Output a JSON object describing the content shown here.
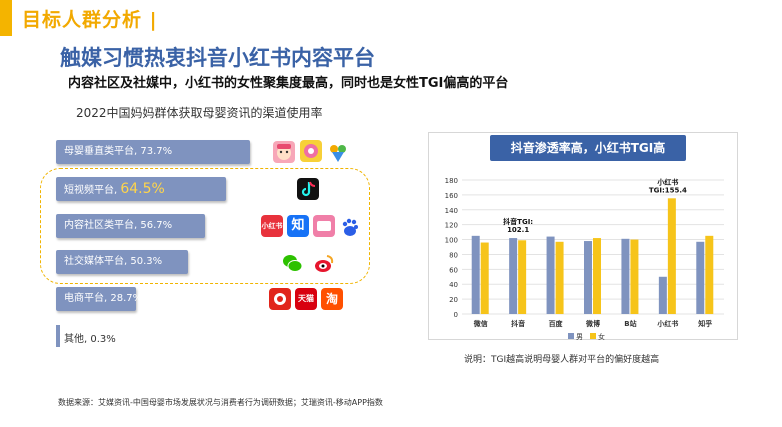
{
  "header": {
    "title": "目标人群分析 |"
  },
  "headline": "触媒习惯热衷抖音小红书内容平台",
  "subheadline": "内容社区及社媒中，小红书的女性聚集度最高，同时也是女性TGI偏高的平台",
  "left_panel": {
    "title": "2022中国妈妈群体获取母婴资讯的渠道使用率",
    "bars": [
      {
        "label": "母婴垂直类平台, 73.7%",
        "value": 73.7
      },
      {
        "label": "短视频平台, ",
        "pct": "64.5%",
        "value": 64.5
      },
      {
        "label": "内容社区类平台, 56.7%",
        "value": 56.7
      },
      {
        "label": "社交媒体平台, 50.3%",
        "value": 50.3
      },
      {
        "label": "电商平台, 28.7%",
        "value": 28.7
      },
      {
        "label": "其他, 0.3%",
        "value": 0.3
      }
    ],
    "icons": {
      "xiaohongshu": "小红书",
      "zhihu": "知",
      "tmall": "天猫",
      "taobao": "淘"
    },
    "colors": {
      "bar": "#7f93bf",
      "highlight_border": "#f0b400"
    }
  },
  "source": "数据来源：艾媒资讯-中国母婴市场发展状况与消费者行为调研数据；艾瑞资讯-移动APP指数",
  "chart_button": "抖音渗透率高，小红书TGI高",
  "chart_data": {
    "type": "bar",
    "categories": [
      "微信",
      "抖音",
      "百度",
      "微博",
      "B站",
      "小红书",
      "知乎"
    ],
    "series": [
      {
        "name": "男",
        "values": [
          105,
          102,
          104,
          98,
          101,
          50,
          97
        ],
        "color": "#7f93bf"
      },
      {
        "name": "女",
        "values": [
          96,
          99,
          97,
          102,
          100,
          155.4,
          105
        ],
        "color": "#f6c41a"
      }
    ],
    "ylim": [
      0,
      180
    ],
    "yticks": [
      0,
      20,
      40,
      60,
      80,
      100,
      120,
      140,
      160,
      180
    ],
    "annotations": [
      {
        "category": "抖音",
        "line1": "抖音TGI:",
        "line2": "102.1"
      },
      {
        "category": "小红书",
        "line1": "小红书",
        "line2": "TGI:155.4"
      }
    ],
    "legend_position": "bottom",
    "grid": true
  },
  "note": "说明：TGI越高说明母婴人群对平台的偏好度越高"
}
